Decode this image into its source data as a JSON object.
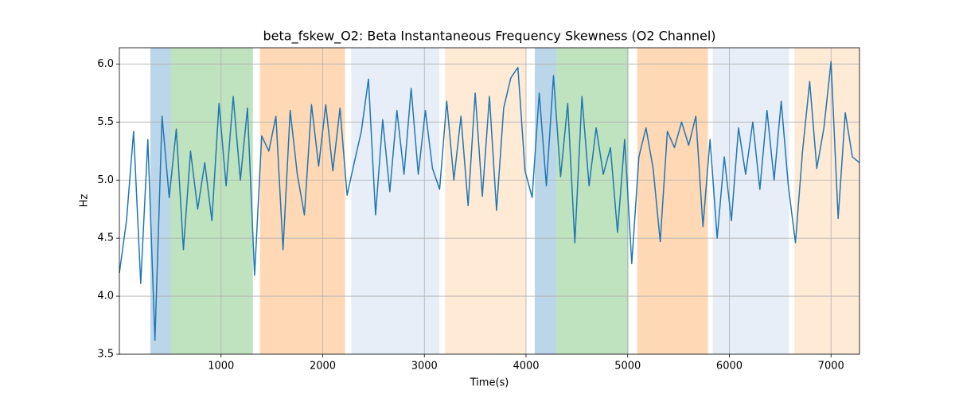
{
  "chart_data": {
    "type": "line",
    "title": "beta_fskew_O2: Beta Instantaneous Frequency Skewness (O2 Channel)",
    "xlabel": "Time(s)",
    "ylabel": "Hz",
    "x": [
      0,
      70,
      140,
      210,
      280,
      350,
      420,
      490,
      560,
      630,
      700,
      770,
      840,
      910,
      980,
      1050,
      1120,
      1190,
      1260,
      1330,
      1400,
      1470,
      1540,
      1610,
      1680,
      1750,
      1820,
      1890,
      1960,
      2030,
      2100,
      2170,
      2240,
      2310,
      2380,
      2450,
      2520,
      2590,
      2660,
      2730,
      2800,
      2870,
      2940,
      3010,
      3080,
      3150,
      3220,
      3290,
      3360,
      3430,
      3500,
      3570,
      3640,
      3710,
      3780,
      3850,
      3920,
      3990,
      4060,
      4130,
      4200,
      4270,
      4340,
      4410,
      4480,
      4550,
      4620,
      4690,
      4760,
      4830,
      4900,
      4970,
      5040,
      5110,
      5180,
      5250,
      5320,
      5390,
      5460,
      5530,
      5600,
      5670,
      5740,
      5810,
      5880,
      5950,
      6020,
      6090,
      6160,
      6230,
      6300,
      6370,
      6440,
      6510,
      6580,
      6650,
      6720,
      6790,
      6860,
      6930,
      7000,
      7070,
      7140,
      7210,
      7280
    ],
    "values": [
      4.2,
      4.65,
      5.42,
      4.11,
      5.35,
      3.62,
      5.55,
      4.85,
      5.44,
      4.4,
      5.25,
      4.75,
      5.15,
      4.65,
      5.66,
      4.95,
      5.72,
      5.0,
      5.62,
      4.18,
      5.38,
      5.25,
      5.55,
      4.4,
      5.6,
      5.05,
      4.7,
      5.65,
      5.12,
      5.65,
      5.08,
      5.62,
      4.87,
      5.15,
      5.42,
      5.87,
      4.7,
      5.52,
      4.9,
      5.6,
      5.05,
      5.79,
      5.05,
      5.6,
      5.1,
      4.92,
      5.68,
      5.0,
      5.55,
      4.78,
      5.75,
      4.86,
      5.72,
      4.74,
      5.62,
      5.88,
      5.97,
      5.08,
      4.85,
      5.75,
      4.95,
      5.9,
      5.03,
      5.66,
      4.46,
      5.72,
      4.95,
      5.45,
      5.05,
      5.28,
      4.55,
      5.35,
      4.28,
      5.2,
      5.45,
      5.1,
      4.47,
      5.42,
      5.28,
      5.5,
      5.3,
      5.55,
      4.6,
      5.35,
      4.5,
      5.2,
      4.65,
      5.45,
      5.05,
      5.5,
      4.92,
      5.6,
      5.0,
      5.68,
      4.95,
      4.46,
      5.25,
      5.85,
      5.1,
      5.45,
      6.02,
      4.67,
      5.58,
      5.2,
      5.15
    ],
    "color": "#1f77b4",
    "spans": [
      {
        "start": 305,
        "end": 508,
        "color": "#1f77b4"
      },
      {
        "start": 508,
        "end": 1313,
        "color": "#2ca02c"
      },
      {
        "start": 1383,
        "end": 2219,
        "color": "#ff7f0e"
      },
      {
        "start": 2281,
        "end": 3148,
        "color": "#aec7e8"
      },
      {
        "start": 3203,
        "end": 4000,
        "color": "#ffbb78"
      },
      {
        "start": 4086,
        "end": 4297,
        "color": "#1f77b4"
      },
      {
        "start": 4297,
        "end": 5008,
        "color": "#2ca02c"
      },
      {
        "start": 5094,
        "end": 5789,
        "color": "#ff7f0e"
      },
      {
        "start": 5836,
        "end": 6586,
        "color": "#aec7e8"
      },
      {
        "start": 6641,
        "end": 7280,
        "color": "#ffbb78"
      }
    ],
    "xlim": [
      0,
      7280
    ],
    "xticks": [
      1000,
      2000,
      3000,
      4000,
      5000,
      6000,
      7000
    ],
    "ylim": [
      3.5,
      6.14
    ],
    "yticks": [
      3.5,
      {
        "value": 4,
        "label": "4.0"
      },
      4.5,
      {
        "value": 5,
        "label": "5.0"
      },
      5.5,
      {
        "value": 6,
        "label": "6.0"
      }
    ],
    "grid": true
  }
}
